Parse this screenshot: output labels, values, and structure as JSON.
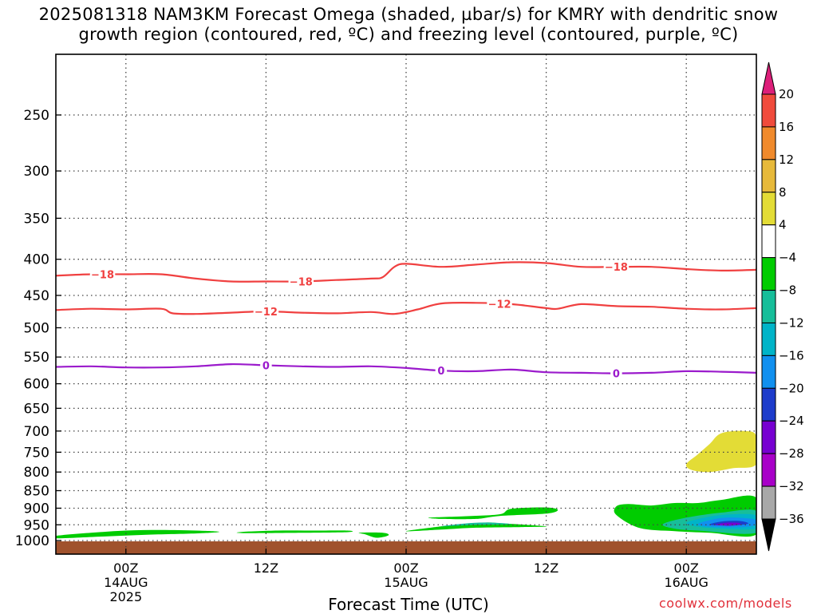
{
  "title": {
    "line1": "2025081318 NAM3KM Forecast Omega (shaded, µbar/s) for KMRY with dendritic snow",
    "line2": "growth region (contoured, red, ºC) and freezing level (contoured, purple, ºC)"
  },
  "credit": "coolwx.com/models",
  "chart_data": {
    "type": "time-height cross-section",
    "xlabel": "Forecast Time (UTC)",
    "x_range_hours": [
      -6,
      54
    ],
    "x_ticks": [
      {
        "hour": 0,
        "lines": [
          "00Z",
          "14AUG",
          "2025"
        ]
      },
      {
        "hour": 12,
        "lines": [
          "12Z"
        ]
      },
      {
        "hour": 24,
        "lines": [
          "00Z",
          "15AUG"
        ]
      },
      {
        "hour": 36,
        "lines": [
          "12Z"
        ]
      },
      {
        "hour": 48,
        "lines": [
          "00Z",
          "16AUG"
        ]
      }
    ],
    "y_axis_hPa": {
      "range": [
        1000,
        200
      ],
      "scale": "log-pressure",
      "ticks": [
        250,
        300,
        350,
        400,
        450,
        500,
        550,
        600,
        650,
        700,
        750,
        800,
        850,
        900,
        950,
        1000
      ]
    },
    "grid": true,
    "contours": [
      {
        "label": "-18",
        "color": "#f04040",
        "points": [
          [
            -6,
            422
          ],
          [
            -3,
            420
          ],
          [
            0,
            420
          ],
          [
            3,
            420
          ],
          [
            6,
            426
          ],
          [
            9,
            430
          ],
          [
            12,
            430
          ],
          [
            15,
            430
          ],
          [
            18,
            428
          ],
          [
            21,
            426
          ],
          [
            22,
            424
          ],
          [
            23,
            410
          ],
          [
            24,
            406
          ],
          [
            27,
            410
          ],
          [
            30,
            407
          ],
          [
            33,
            404
          ],
          [
            36,
            405
          ],
          [
            39,
            410
          ],
          [
            42,
            410
          ],
          [
            45,
            410
          ],
          [
            48,
            413
          ],
          [
            51,
            415
          ],
          [
            54,
            414
          ]
        ],
        "label_hours": [
          -2,
          15,
          42
        ]
      },
      {
        "label": "-12",
        "color": "#f04040",
        "points": [
          [
            -6,
            472
          ],
          [
            -3,
            470
          ],
          [
            0,
            471
          ],
          [
            3,
            470
          ],
          [
            4,
            477
          ],
          [
            6,
            478
          ],
          [
            9,
            476
          ],
          [
            12,
            474
          ],
          [
            15,
            476
          ],
          [
            18,
            477
          ],
          [
            21,
            475
          ],
          [
            23,
            478
          ],
          [
            25,
            471
          ],
          [
            27,
            462
          ],
          [
            30,
            461
          ],
          [
            33,
            463
          ],
          [
            36,
            469
          ],
          [
            37,
            470
          ],
          [
            39,
            463
          ],
          [
            42,
            466
          ],
          [
            45,
            467
          ],
          [
            48,
            470
          ],
          [
            51,
            471
          ],
          [
            54,
            469
          ]
        ],
        "label_hours": [
          12,
          32
        ]
      },
      {
        "label": "0",
        "color": "#9b1bcc",
        "points": [
          [
            -6,
            568
          ],
          [
            -3,
            567
          ],
          [
            0,
            569
          ],
          [
            3,
            569
          ],
          [
            6,
            567
          ],
          [
            9,
            563
          ],
          [
            12,
            565
          ],
          [
            15,
            567
          ],
          [
            18,
            568
          ],
          [
            21,
            567
          ],
          [
            24,
            570
          ],
          [
            27,
            575
          ],
          [
            30,
            576
          ],
          [
            33,
            573
          ],
          [
            36,
            578
          ],
          [
            39,
            579
          ],
          [
            42,
            580
          ],
          [
            45,
            579
          ],
          [
            48,
            576
          ],
          [
            51,
            577
          ],
          [
            54,
            579
          ]
        ],
        "label_hours": [
          12,
          27,
          42
        ]
      }
    ],
    "omega_areas": [
      {
        "value": -6,
        "color": "#00cc00",
        "pts": [
          [
            -6,
            985
          ],
          [
            -3,
            975
          ],
          [
            0,
            968
          ],
          [
            3,
            966
          ],
          [
            6,
            968
          ],
          [
            8,
            972
          ],
          [
            6,
            977
          ],
          [
            2,
            981
          ],
          [
            -2,
            987
          ],
          [
            -6,
            993
          ]
        ]
      },
      {
        "value": -6,
        "color": "#00cc00",
        "pts": [
          [
            10,
            972
          ],
          [
            13,
            968
          ],
          [
            16,
            968
          ],
          [
            19,
            968
          ],
          [
            19,
            973
          ],
          [
            15,
            975
          ],
          [
            10,
            976
          ]
        ]
      },
      {
        "value": -6,
        "color": "#00cc00",
        "pts": [
          [
            20,
            975
          ],
          [
            22,
            975
          ],
          [
            22.5,
            983
          ],
          [
            21.5,
            991
          ],
          [
            20.5,
            980
          ]
        ]
      },
      {
        "value": -6,
        "color": "#00cc00",
        "pts": [
          [
            24,
            970
          ],
          [
            27,
            955
          ],
          [
            29,
            947
          ],
          [
            31,
            943
          ],
          [
            32,
            945
          ],
          [
            36,
            955
          ],
          [
            34,
            957
          ],
          [
            30,
            959
          ],
          [
            27,
            965
          ]
        ]
      },
      {
        "value": -6,
        "color": "#00cc00",
        "pts": [
          [
            26,
            928
          ],
          [
            29,
            924
          ],
          [
            32,
            918
          ],
          [
            33,
            902
          ],
          [
            36,
            898
          ],
          [
            37,
            905
          ],
          [
            36,
            916
          ],
          [
            32,
            923
          ],
          [
            30,
            932
          ],
          [
            27,
            932
          ]
        ]
      },
      {
        "value": -6,
        "color": "#00cc00",
        "pts": [
          [
            42,
            895
          ],
          [
            43,
            888
          ],
          [
            45,
            892
          ],
          [
            47,
            885
          ],
          [
            49,
            885
          ],
          [
            51,
            876
          ],
          [
            54,
            870
          ],
          [
            54,
            980
          ],
          [
            50,
            975
          ],
          [
            47,
            970
          ],
          [
            44,
            960
          ],
          [
            42,
            920
          ]
        ]
      },
      {
        "value": -10,
        "color": "#17be9a",
        "pts": [
          [
            27,
            955
          ],
          [
            29,
            946
          ],
          [
            31,
            943
          ],
          [
            33,
            948
          ],
          [
            30,
            950
          ]
        ]
      },
      {
        "value": -10,
        "color": "#17be9a",
        "pts": [
          [
            46,
            948
          ],
          [
            48,
            928
          ],
          [
            51,
            913
          ],
          [
            54,
            908
          ],
          [
            54,
            975
          ],
          [
            49,
            968
          ],
          [
            47,
            962
          ]
        ]
      },
      {
        "value": -14,
        "color": "#00b4c8",
        "pts": [
          [
            48,
            945
          ],
          [
            50,
            925
          ],
          [
            52,
            918
          ],
          [
            54,
            922
          ],
          [
            54,
            962
          ],
          [
            50,
            960
          ]
        ]
      },
      {
        "value": -18,
        "color": "#1190ef",
        "pts": [
          [
            49,
            948
          ],
          [
            50.5,
            932
          ],
          [
            52,
            928
          ],
          [
            54,
            935
          ],
          [
            53.5,
            955
          ],
          [
            50.5,
            957
          ]
        ]
      },
      {
        "value": -22,
        "color": "#1d3ccb",
        "pts": [
          [
            50,
            950
          ],
          [
            51,
            940
          ],
          [
            52.5,
            938
          ],
          [
            53.3,
            946
          ],
          [
            52,
            952
          ]
        ]
      },
      {
        "value": -26,
        "color": "#7700d1",
        "pts": [
          [
            50.5,
            950
          ],
          [
            51.4,
            944
          ],
          [
            52.4,
            944
          ],
          [
            52.6,
            949
          ],
          [
            51.6,
            953
          ]
        ]
      },
      {
        "value": 6,
        "color": "#e3dc36",
        "pts": [
          [
            48,
            780
          ],
          [
            49,
            755
          ],
          [
            50,
            730
          ],
          [
            51,
            705
          ],
          [
            53,
            700
          ],
          [
            54,
            712
          ],
          [
            54,
            780
          ],
          [
            52,
            790
          ],
          [
            50,
            800
          ],
          [
            48.5,
            795
          ]
        ]
      }
    ],
    "colorbar": {
      "levels": [
        20,
        16,
        12,
        8,
        4,
        -4,
        -8,
        -12,
        -16,
        -20,
        -24,
        -28,
        -32,
        -36
      ],
      "colors": [
        "#dd1f7a",
        "#f04b3c",
        "#f08a2c",
        "#e7b93a",
        "#e3dc36",
        "#ffffff",
        "#00cc00",
        "#17be9a",
        "#00b4c8",
        "#1190ef",
        "#1d3ccb",
        "#7700d1",
        "#a800c8",
        "#a8a8a8",
        "#000000"
      ]
    },
    "ground_color": "#a0522d"
  }
}
